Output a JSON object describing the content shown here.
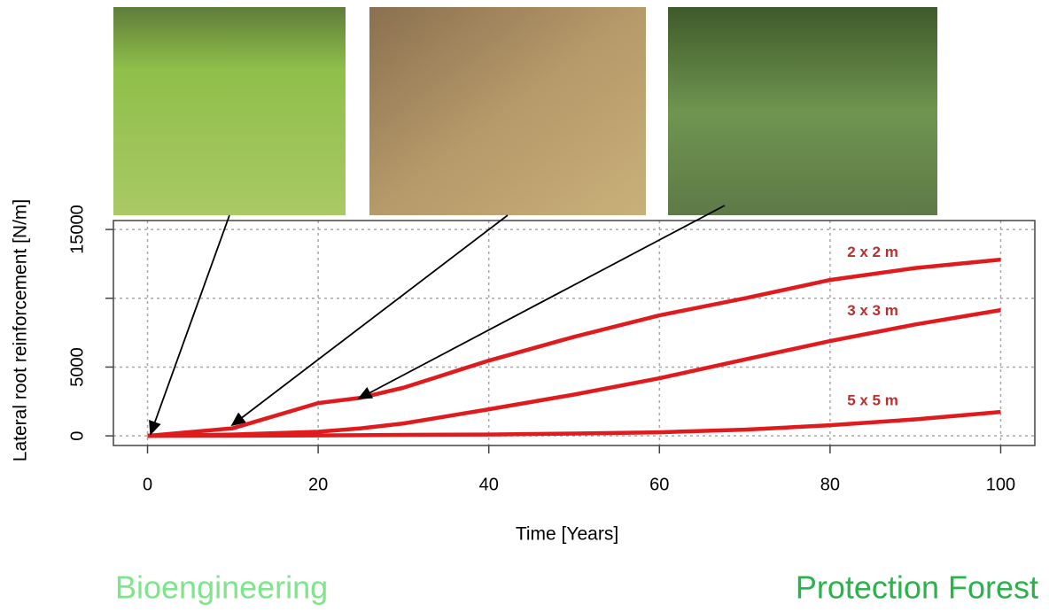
{
  "chart_data": {
    "type": "line",
    "x_label": "Time [Years]",
    "y_label": "Lateral root reinforcement [N/m]",
    "x": [
      0,
      10,
      20,
      25,
      30,
      40,
      50,
      60,
      70,
      80,
      90,
      100
    ],
    "series": [
      {
        "name": "2 x 2 m",
        "color": "#e01b1e",
        "values": [
          0,
          550,
          2380,
          2770,
          3500,
          5470,
          7200,
          8760,
          10000,
          11330,
          12200,
          12810
        ]
      },
      {
        "name": "3 x 3 m",
        "color": "#e01b1e",
        "values": [
          0,
          100,
          300,
          550,
          900,
          1930,
          3000,
          4190,
          5550,
          6890,
          8100,
          9140
        ]
      },
      {
        "name": "5 x 5 m",
        "color": "#e01b1e",
        "values": [
          0,
          10,
          30,
          50,
          70,
          100,
          170,
          260,
          450,
          770,
          1200,
          1740
        ]
      }
    ],
    "label_color": "#b8302e",
    "xlim": [
      -4,
      104
    ],
    "ylim": [
      -700,
      15650
    ],
    "xticks": [
      0,
      20,
      40,
      60,
      80,
      100
    ],
    "yticks": [
      0,
      5000,
      {
        "value": 10000,
        "label": null
      },
      15000
    ],
    "grid": true,
    "captions": {
      "left": "Bioengineering",
      "right": "Protection Forest"
    }
  }
}
